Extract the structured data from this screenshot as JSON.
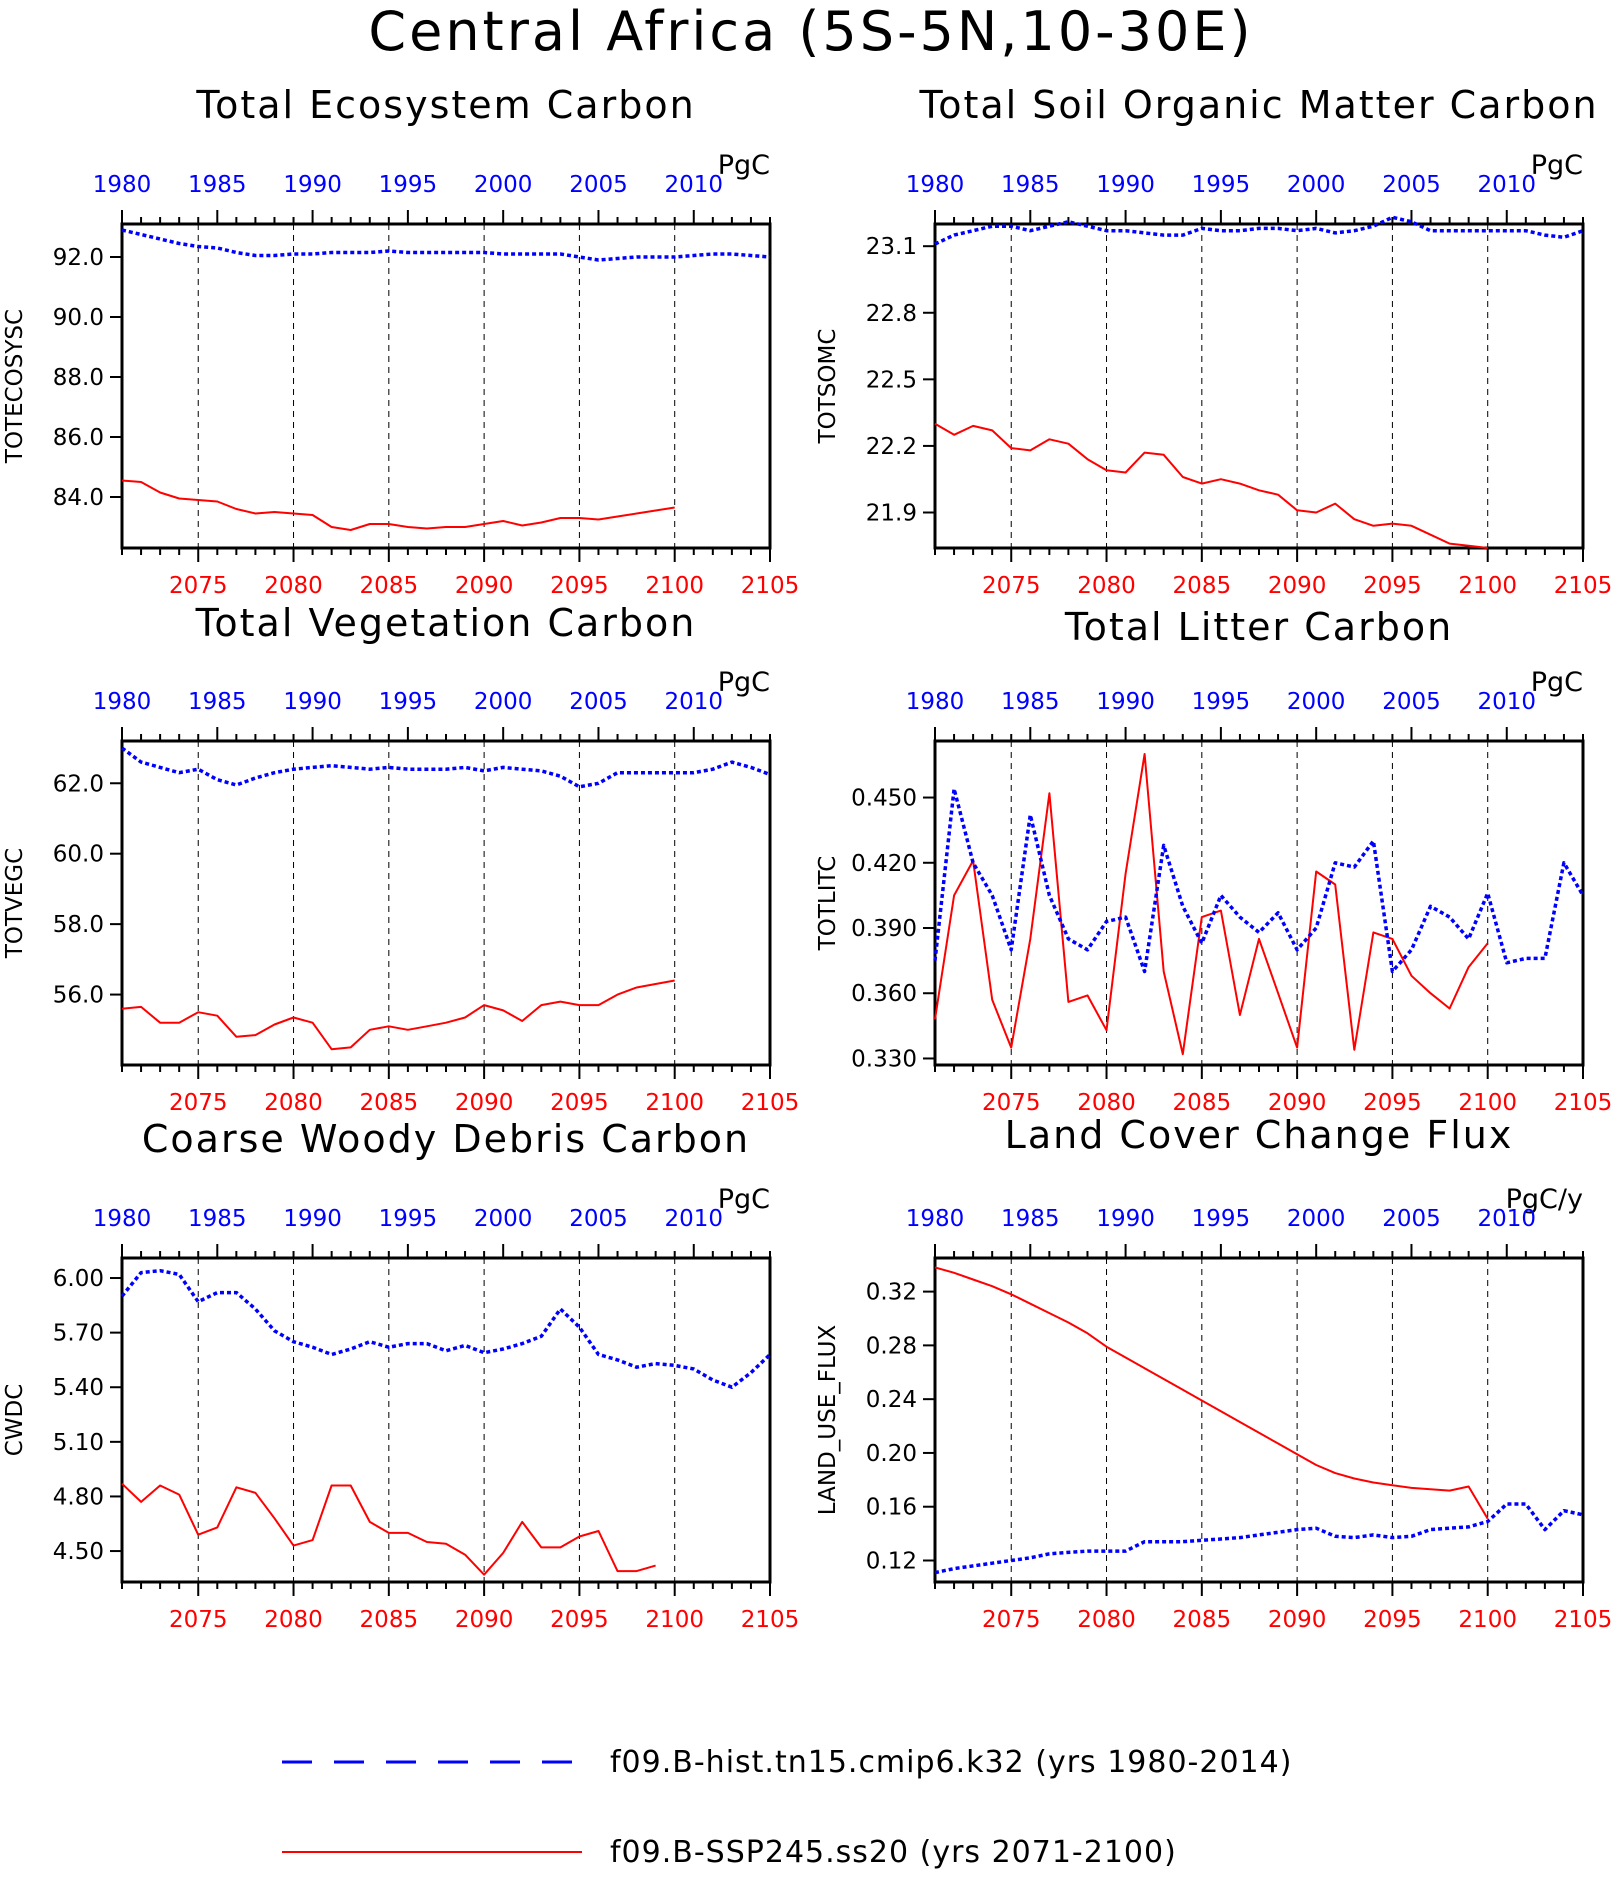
{
  "title": "Central Africa (5S-5N,10-30E)",
  "colors": {
    "hist": "#0000ff",
    "ssp": "#ff0000",
    "axis": "#000000"
  },
  "chart_data": [
    {
      "type": "line",
      "title": "Total Ecosystem Carbon",
      "ylabel": "TOTECOSYSC",
      "units": "PgC",
      "ylim": [
        82.3,
        93.1
      ],
      "yticks": [
        "84.0",
        "86.0",
        "88.0",
        "90.0",
        "92.0"
      ],
      "x_bottom_range": [
        2071,
        2105
      ],
      "x_top_range": [
        1980,
        2014
      ],
      "series": [
        {
          "name": "f09.B-SSP245.ss20 (yrs 2071-2100)",
          "axis": "bottom",
          "x_start": 2071,
          "values": [
            84.55,
            84.5,
            84.15,
            83.95,
            83.9,
            83.85,
            83.6,
            83.45,
            83.5,
            83.45,
            83.4,
            83.0,
            82.9,
            83.1,
            83.1,
            83.0,
            82.95,
            83.0,
            83.0,
            83.1,
            83.2,
            83.05,
            83.15,
            83.3,
            83.3,
            83.25,
            83.35,
            83.45,
            83.55,
            83.65
          ]
        },
        {
          "name": "f09.B-hist.tn15.cmip6.k32 (yrs 1980-2014)",
          "axis": "top",
          "x_start": 1980,
          "values": [
            92.9,
            92.75,
            92.6,
            92.45,
            92.35,
            92.3,
            92.15,
            92.05,
            92.05,
            92.1,
            92.1,
            92.15,
            92.15,
            92.15,
            92.2,
            92.15,
            92.15,
            92.15,
            92.15,
            92.15,
            92.1,
            92.1,
            92.1,
            92.1,
            92.0,
            91.9,
            91.95,
            92.0,
            92.0,
            92.0,
            92.05,
            92.1,
            92.1,
            92.05,
            92.0
          ]
        }
      ]
    },
    {
      "type": "line",
      "title": "Total Soil Organic Matter Carbon",
      "ylabel": "TOTSOMC",
      "units": "PgC",
      "ylim": [
        21.74,
        23.2
      ],
      "yticks": [
        "21.9",
        "22.2",
        "22.5",
        "22.8",
        "23.1"
      ],
      "x_bottom_range": [
        2071,
        2105
      ],
      "x_top_range": [
        1980,
        2014
      ],
      "series": [
        {
          "name": "f09.B-SSP245.ss20 (yrs 2071-2100)",
          "axis": "bottom",
          "x_start": 2071,
          "values": [
            22.3,
            22.25,
            22.29,
            22.27,
            22.19,
            22.18,
            22.23,
            22.21,
            22.14,
            22.09,
            22.08,
            22.17,
            22.16,
            22.06,
            22.03,
            22.05,
            22.03,
            22.0,
            21.98,
            21.91,
            21.9,
            21.94,
            21.87,
            21.84,
            21.85,
            21.84,
            21.8,
            21.76,
            21.75,
            21.74
          ]
        },
        {
          "name": "f09.B-hist.tn15.cmip6.k32 (yrs 1980-2014)",
          "axis": "top",
          "x_start": 1980,
          "values": [
            23.11,
            23.15,
            23.17,
            23.19,
            23.19,
            23.17,
            23.19,
            23.21,
            23.19,
            23.17,
            23.17,
            23.16,
            23.15,
            23.15,
            23.18,
            23.17,
            23.17,
            23.18,
            23.18,
            23.17,
            23.18,
            23.16,
            23.17,
            23.19,
            23.23,
            23.21,
            23.17,
            23.17,
            23.17,
            23.17,
            23.17,
            23.17,
            23.15,
            23.14,
            23.17
          ]
        }
      ]
    },
    {
      "type": "line",
      "title": "Total Vegetation Carbon",
      "ylabel": "TOTVEGC",
      "units": "PgC",
      "ylim": [
        54.0,
        63.2
      ],
      "yticks": [
        "56.0",
        "58.0",
        "60.0",
        "62.0"
      ],
      "x_bottom_range": [
        2071,
        2105
      ],
      "x_top_range": [
        1980,
        2014
      ],
      "series": [
        {
          "name": "f09.B-SSP245.ss20 (yrs 2071-2100)",
          "axis": "bottom",
          "x_start": 2071,
          "values": [
            55.6,
            55.65,
            55.2,
            55.2,
            55.5,
            55.4,
            54.8,
            54.85,
            55.15,
            55.35,
            55.2,
            54.45,
            54.5,
            55.0,
            55.1,
            55.0,
            55.1,
            55.2,
            55.35,
            55.7,
            55.55,
            55.25,
            55.7,
            55.8,
            55.7,
            55.7,
            56.0,
            56.2,
            56.3,
            56.4
          ]
        },
        {
          "name": "f09.B-hist.tn15.cmip6.k32 (yrs 1980-2014)",
          "axis": "top",
          "x_start": 1980,
          "values": [
            63.0,
            62.6,
            62.45,
            62.3,
            62.4,
            62.1,
            61.95,
            62.15,
            62.3,
            62.4,
            62.45,
            62.5,
            62.45,
            62.4,
            62.45,
            62.4,
            62.4,
            62.4,
            62.45,
            62.35,
            62.45,
            62.4,
            62.35,
            62.2,
            61.9,
            62.0,
            62.3,
            62.3,
            62.3,
            62.3,
            62.3,
            62.4,
            62.6,
            62.45,
            62.25
          ]
        }
      ]
    },
    {
      "type": "line",
      "title": "Total Litter Carbon",
      "ylabel": "TOTLITC",
      "units": "PgC",
      "ylim": [
        0.327,
        0.476
      ],
      "yticks": [
        "0.330",
        "0.360",
        "0.390",
        "0.420",
        "0.450"
      ],
      "x_bottom_range": [
        2071,
        2105
      ],
      "x_top_range": [
        1980,
        2014
      ],
      "series": [
        {
          "name": "f09.B-SSP245.ss20 (yrs 2071-2100)",
          "axis": "bottom",
          "x_start": 2071,
          "values": [
            0.348,
            0.405,
            0.421,
            0.357,
            0.335,
            0.385,
            0.452,
            0.356,
            0.359,
            0.343,
            0.415,
            0.47,
            0.37,
            0.332,
            0.395,
            0.398,
            0.35,
            0.385,
            0.36,
            0.335,
            0.416,
            0.41,
            0.334,
            0.388,
            0.385,
            0.368,
            0.36,
            0.353,
            0.372,
            0.383
          ]
        },
        {
          "name": "f09.B-hist.tn15.cmip6.k32 (yrs 1980-2014)",
          "axis": "top",
          "x_start": 1980,
          "values": [
            0.375,
            0.454,
            0.42,
            0.405,
            0.38,
            0.442,
            0.405,
            0.385,
            0.38,
            0.393,
            0.395,
            0.37,
            0.428,
            0.4,
            0.383,
            0.405,
            0.395,
            0.388,
            0.397,
            0.38,
            0.39,
            0.42,
            0.418,
            0.43,
            0.37,
            0.38,
            0.4,
            0.395,
            0.385,
            0.406,
            0.374,
            0.376,
            0.376,
            0.42,
            0.405
          ]
        }
      ]
    },
    {
      "type": "line",
      "title": "Coarse Woody Debris Carbon",
      "ylabel": "CWDC",
      "units": "PgC",
      "ylim": [
        4.33,
        6.11
      ],
      "yticks": [
        "4.50",
        "4.80",
        "5.10",
        "5.40",
        "5.70",
        "6.00"
      ],
      "x_bottom_range": [
        2071,
        2105
      ],
      "x_top_range": [
        1980,
        2014
      ],
      "series": [
        {
          "name": "f09.B-SSP245.ss20 (yrs 2071-2100)",
          "axis": "bottom",
          "x_start": 2071,
          "values": [
            4.87,
            4.77,
            4.86,
            4.81,
            4.59,
            4.63,
            4.85,
            4.82,
            4.68,
            4.53,
            4.56,
            4.86,
            4.86,
            4.66,
            4.6,
            4.6,
            4.55,
            4.54,
            4.48,
            4.37,
            4.49,
            4.66,
            4.52,
            4.52,
            4.58,
            4.61,
            4.39,
            4.39,
            4.42,
            null
          ]
        },
        {
          "name": "f09.B-hist.tn15.cmip6.k32 (yrs 1980-2014)",
          "axis": "top",
          "x_start": 1980,
          "values": [
            5.9,
            6.03,
            6.04,
            6.02,
            5.87,
            5.92,
            5.92,
            5.83,
            5.71,
            5.65,
            5.62,
            5.58,
            5.61,
            5.65,
            5.62,
            5.64,
            5.64,
            5.6,
            5.63,
            5.59,
            5.61,
            5.64,
            5.68,
            5.83,
            5.73,
            5.58,
            5.55,
            5.51,
            5.53,
            5.52,
            5.5,
            5.44,
            5.4,
            5.48,
            5.58
          ]
        }
      ]
    },
    {
      "type": "line",
      "title": "Land Cover Change Flux",
      "ylabel": "LAND_USE_FLUX",
      "units": "PgC/y",
      "ylim": [
        0.104,
        0.345
      ],
      "yticks": [
        "0.12",
        "0.16",
        "0.20",
        "0.24",
        "0.28",
        "0.32"
      ],
      "x_bottom_range": [
        2071,
        2105
      ],
      "x_top_range": [
        1980,
        2014
      ],
      "series": [
        {
          "name": "f09.B-SSP245.ss20 (yrs 2071-2100)",
          "axis": "bottom",
          "x_start": 2071,
          "values": [
            0.338,
            0.334,
            0.329,
            0.324,
            0.318,
            0.311,
            0.304,
            0.297,
            0.289,
            0.279,
            0.271,
            0.263,
            0.255,
            0.247,
            0.239,
            0.231,
            0.223,
            0.215,
            0.207,
            0.199,
            0.191,
            0.185,
            0.181,
            0.178,
            0.176,
            0.174,
            0.173,
            0.172,
            0.175,
            0.151
          ]
        },
        {
          "name": "f09.B-hist.tn15.cmip6.k32 (yrs 1980-2014)",
          "axis": "top",
          "x_start": 1980,
          "values": [
            0.111,
            0.114,
            0.116,
            0.118,
            0.12,
            0.122,
            0.125,
            0.126,
            0.127,
            0.127,
            0.127,
            0.134,
            0.134,
            0.134,
            0.135,
            0.136,
            0.137,
            0.139,
            0.141,
            0.143,
            0.144,
            0.138,
            0.137,
            0.139,
            0.137,
            0.138,
            0.143,
            0.144,
            0.145,
            0.149,
            0.162,
            0.162,
            0.143,
            0.157,
            0.154
          ]
        }
      ]
    }
  ],
  "axis_labels": {
    "bottom_years": [
      "2075",
      "2080",
      "2085",
      "2090",
      "2095",
      "2100",
      "2105"
    ],
    "top_years": [
      "1980",
      "1985",
      "1990",
      "1995",
      "2000",
      "2005",
      "2010"
    ]
  },
  "legend": {
    "hist": "f09.B-hist.tn15.cmip6.k32 (yrs 1980-2014)",
    "ssp": "f09.B-SSP245.ss20 (yrs 2071-2100)"
  }
}
